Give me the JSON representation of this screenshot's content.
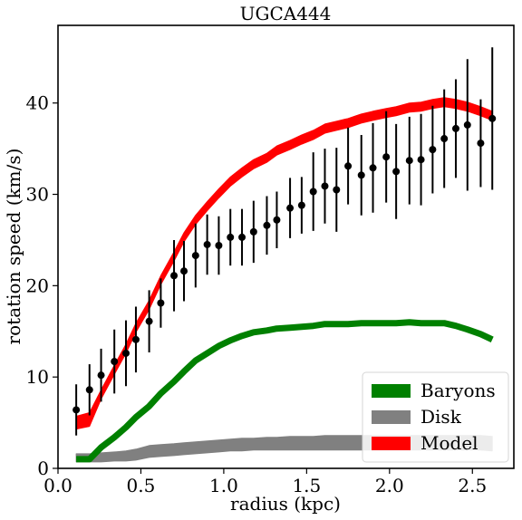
{
  "chart_data": {
    "type": "line",
    "title": "UGCA444",
    "xlabel": "radius (kpc)",
    "ylabel": "rotation speed (km/s)",
    "xlim": [
      0.0,
      2.75
    ],
    "ylim": [
      0,
      48.5
    ],
    "xticks": [
      0.0,
      0.5,
      1.0,
      1.5,
      2.0,
      2.5
    ],
    "xtick_labels": [
      "0.0",
      "0.5",
      "1.0",
      "1.5",
      "2.0",
      "2.5"
    ],
    "yticks": [
      0,
      10,
      20,
      30,
      40
    ],
    "ytick_labels": [
      "0",
      "10",
      "20",
      "30",
      "40"
    ],
    "grid": false,
    "legend_position": "lower-right",
    "observed": {
      "x": [
        0.11,
        0.19,
        0.26,
        0.34,
        0.41,
        0.47,
        0.55,
        0.62,
        0.7,
        0.76,
        0.83,
        0.9,
        0.97,
        1.04,
        1.11,
        1.18,
        1.26,
        1.32,
        1.4,
        1.47,
        1.54,
        1.61,
        1.68,
        1.75,
        1.83,
        1.9,
        1.98,
        2.04,
        2.12,
        2.19,
        2.26,
        2.33,
        2.4,
        2.47,
        2.55,
        2.62
      ],
      "y": [
        6.4,
        8.6,
        10.2,
        11.7,
        12.6,
        14.1,
        16.1,
        18.1,
        21.1,
        21.6,
        23.3,
        24.5,
        24.4,
        25.3,
        25.3,
        25.9,
        26.6,
        27.2,
        28.5,
        28.8,
        30.3,
        30.9,
        30.5,
        33.1,
        32.1,
        32.9,
        34.1,
        32.5,
        33.7,
        33.8,
        34.9,
        36.1,
        37.2,
        37.6,
        35.6,
        38.3
      ],
      "yerr": [
        2.8,
        2.8,
        2.9,
        3.5,
        3.6,
        3.6,
        3.4,
        2.7,
        3.9,
        3.3,
        3.5,
        3.3,
        3.2,
        3.1,
        3.1,
        3.4,
        3.2,
        3.1,
        3.3,
        3.1,
        4.3,
        4.1,
        4.6,
        4.2,
        4.4,
        4.9,
        5.0,
        5.2,
        4.8,
        5.0,
        4.8,
        5.4,
        5.4,
        7.2,
        4.8,
        7.8
      ],
      "marker_color": "#000000"
    },
    "series": [
      {
        "name": "Baryons",
        "color": "#008000",
        "style": "line",
        "x": [
          0.11,
          0.19,
          0.26,
          0.34,
          0.41,
          0.47,
          0.55,
          0.62,
          0.7,
          0.76,
          0.83,
          0.9,
          0.97,
          1.04,
          1.11,
          1.18,
          1.26,
          1.32,
          1.4,
          1.47,
          1.54,
          1.61,
          1.68,
          1.75,
          1.83,
          1.9,
          1.98,
          2.04,
          2.12,
          2.19,
          2.26,
          2.33,
          2.4,
          2.47,
          2.55,
          2.62
        ],
        "y": [
          1.0,
          1.0,
          2.3,
          3.4,
          4.5,
          5.6,
          6.8,
          8.2,
          9.5,
          10.6,
          11.8,
          12.6,
          13.4,
          14.0,
          14.5,
          14.9,
          15.1,
          15.3,
          15.4,
          15.5,
          15.6,
          15.8,
          15.8,
          15.8,
          15.9,
          15.9,
          15.9,
          15.9,
          16.0,
          15.9,
          15.9,
          15.9,
          15.6,
          15.2,
          14.7,
          14.1
        ]
      },
      {
        "name": "Disk",
        "color": "#808080",
        "style": "band",
        "x": [
          0.11,
          0.19,
          0.26,
          0.34,
          0.41,
          0.47,
          0.55,
          0.62,
          0.7,
          0.76,
          0.83,
          0.9,
          0.97,
          1.04,
          1.11,
          1.18,
          1.26,
          1.32,
          1.4,
          1.47,
          1.54,
          1.61,
          1.68,
          1.75,
          1.83,
          1.9,
          1.98,
          2.04,
          2.12,
          2.19,
          2.26,
          2.33,
          2.4,
          2.47,
          2.55,
          2.62
        ],
        "lower": [
          0.7,
          0.7,
          0.7,
          0.8,
          0.8,
          0.9,
          1.2,
          1.3,
          1.4,
          1.5,
          1.6,
          1.7,
          1.8,
          1.9,
          1.9,
          2.0,
          2.0,
          2.0,
          2.0,
          2.0,
          2.0,
          2.0,
          2.0,
          2.0,
          2.0,
          2.0,
          2.0,
          2.0,
          2.0,
          2.0,
          2.0,
          2.0,
          2.0,
          2.0,
          2.0,
          1.9
        ],
        "upper": [
          1.6,
          1.6,
          1.7,
          1.8,
          1.9,
          2.1,
          2.5,
          2.6,
          2.7,
          2.8,
          2.9,
          3.0,
          3.1,
          3.2,
          3.3,
          3.3,
          3.4,
          3.4,
          3.5,
          3.5,
          3.5,
          3.6,
          3.6,
          3.6,
          3.6,
          3.6,
          3.6,
          3.6,
          3.6,
          3.6,
          3.6,
          3.6,
          3.6,
          3.6,
          3.6,
          3.5
        ]
      },
      {
        "name": "Model",
        "color": "#ff0000",
        "style": "band",
        "x": [
          0.11,
          0.19,
          0.26,
          0.34,
          0.41,
          0.47,
          0.55,
          0.62,
          0.7,
          0.76,
          0.83,
          0.9,
          0.97,
          1.04,
          1.11,
          1.18,
          1.26,
          1.32,
          1.4,
          1.47,
          1.54,
          1.61,
          1.68,
          1.75,
          1.83,
          1.9,
          1.98,
          2.04,
          2.12,
          2.19,
          2.26,
          2.33,
          2.4,
          2.47,
          2.55,
          2.62
        ],
        "lower": [
          4.3,
          4.6,
          7.6,
          10.3,
          12.6,
          14.9,
          17.4,
          20.1,
          22.7,
          24.8,
          26.7,
          28.2,
          29.6,
          30.9,
          31.9,
          32.8,
          33.5,
          34.3,
          34.9,
          35.5,
          36.0,
          36.7,
          37.0,
          37.3,
          37.8,
          38.1,
          38.4,
          38.6,
          39.0,
          39.1,
          39.4,
          39.6,
          39.4,
          39.1,
          38.6,
          38.1
        ],
        "upper": [
          5.7,
          6.1,
          8.6,
          11.3,
          13.6,
          15.9,
          18.4,
          21.1,
          23.7,
          25.8,
          27.7,
          29.2,
          30.6,
          31.9,
          32.9,
          33.8,
          34.5,
          35.3,
          35.9,
          36.5,
          37.0,
          37.7,
          38.0,
          38.3,
          38.8,
          39.1,
          39.4,
          39.6,
          40.0,
          40.1,
          40.4,
          40.6,
          40.4,
          40.1,
          39.6,
          39.1
        ]
      }
    ]
  }
}
